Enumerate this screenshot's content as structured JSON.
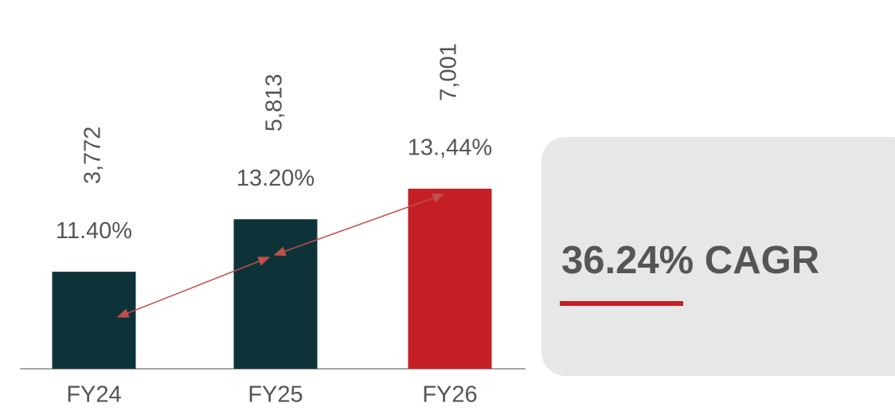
{
  "chart_data": {
    "type": "bar",
    "categories": [
      "FY24",
      "FY25",
      "FY26"
    ],
    "values": [
      3772,
      5813,
      7001
    ],
    "value_labels": [
      "3,772",
      "5,813",
      "7,001"
    ],
    "colors": [
      "#0d3338",
      "#0d3338",
      "#c41f26"
    ],
    "annotations": [
      "11.40%",
      "13.20%",
      "13.,44%"
    ],
    "callout": "36.24% CAGR"
  }
}
